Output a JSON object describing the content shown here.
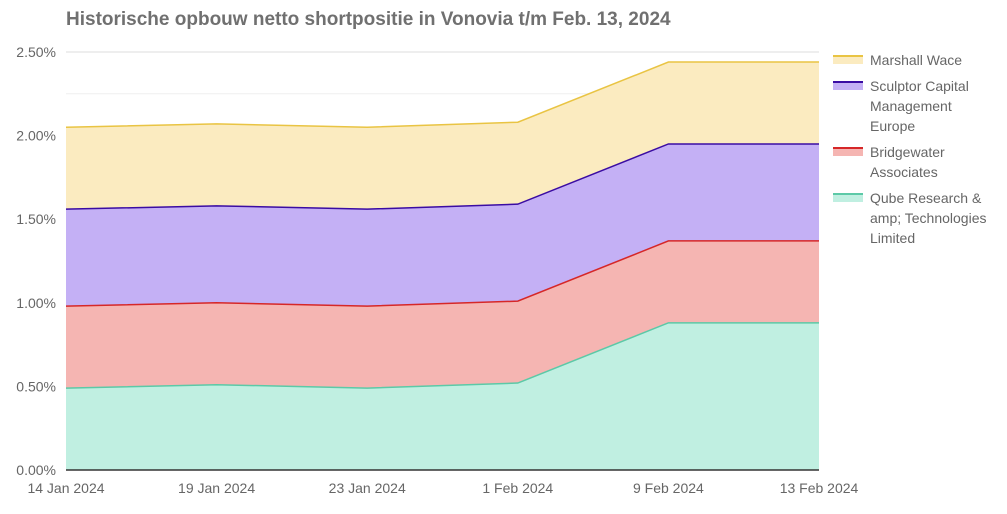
{
  "chart_data": {
    "type": "area",
    "stacked": true,
    "title": "Historische opbouw netto shortpositie in Vonovia t/m Feb. 13, 2024",
    "x": [
      "14 Jan 2024",
      "19 Jan 2024",
      "23 Jan 2024",
      "1 Feb 2024",
      "9 Feb 2024",
      "13 Feb 2024"
    ],
    "xlabel": "",
    "ylabel": "",
    "ylim": [
      0,
      2.5
    ],
    "yticks": [
      "0.00%",
      "0.50%",
      "1.00%",
      "1.50%",
      "2.00%",
      "2.50%"
    ],
    "grid": true,
    "legend_position": "right",
    "series": [
      {
        "name": "Qube Research & amp; Technologies Limited",
        "values": [
          0.49,
          0.51,
          0.49,
          0.52,
          0.88,
          0.88
        ],
        "color": "#5cc9a7",
        "fill": "#c0efe1"
      },
      {
        "name": "Bridgewater Associates",
        "values": [
          0.49,
          0.49,
          0.49,
          0.49,
          0.49,
          0.49
        ],
        "color": "#d62728",
        "fill": "#f5b5b2"
      },
      {
        "name": "Sculptor Capital Management Europe",
        "values": [
          0.58,
          0.58,
          0.58,
          0.58,
          0.58,
          0.58
        ],
        "color": "#3a0ca3",
        "fill": "#c4b0f5"
      },
      {
        "name": "Marshall Wace",
        "values": [
          0.49,
          0.49,
          0.49,
          0.49,
          0.49,
          0.49
        ],
        "color": "#e9c443",
        "fill": "#fbebc0"
      }
    ],
    "legend_order": [
      "Marshall Wace",
      "Sculptor Capital Management Europe",
      "Bridgewater Associates",
      "Qube Research & amp; Technologies Limited"
    ]
  }
}
